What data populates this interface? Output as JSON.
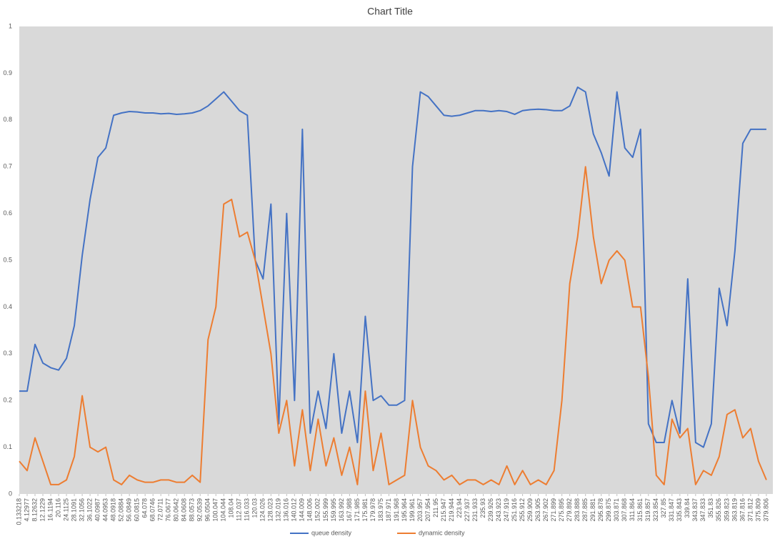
{
  "chart_data": {
    "type": "line",
    "title": "Chart Title",
    "x": [
      0.133218,
      4.12977,
      8.12632,
      12.1229,
      16.1194,
      20.116,
      24.1125,
      28.1091,
      32.1056,
      36.1022,
      40.0987,
      44.0953,
      48.0918,
      52.0884,
      56.0849,
      60.0815,
      64.078,
      68.0746,
      72.0711,
      76.0677,
      80.0642,
      84.0608,
      88.0573,
      92.0539,
      96.0504,
      100.047,
      104.044,
      108.04,
      112.037,
      116.033,
      120.03,
      124.026,
      128.023,
      132.019,
      136.016,
      140.012,
      144.009,
      148.006,
      152.002,
      155.999,
      159.995,
      163.992,
      167.988,
      171.985,
      175.981,
      179.978,
      183.975,
      187.971,
      191.968,
      195.964,
      199.961,
      203.957,
      207.954,
      211.95,
      215.947,
      219.944,
      223.94,
      227.937,
      231.933,
      235.93,
      239.926,
      243.923,
      247.919,
      251.916,
      255.912,
      259.909,
      263.905,
      267.902,
      271.899,
      275.895,
      279.892,
      283.888,
      287.885,
      291.881,
      295.878,
      299.875,
      303.871,
      307.868,
      311.864,
      315.861,
      319.857,
      323.854,
      327.85,
      331.847,
      335.843,
      339.84,
      343.837,
      347.833,
      351.83,
      355.826,
      359.823,
      363.819,
      367.816,
      371.812,
      375.809,
      379.806
    ],
    "series": [
      {
        "name": "queue density",
        "color": "#4472c4",
        "values": [
          0.22,
          0.22,
          0.32,
          0.28,
          0.27,
          0.265,
          0.29,
          0.36,
          0.51,
          0.63,
          0.72,
          0.74,
          0.81,
          0.815,
          0.818,
          0.817,
          0.815,
          0.815,
          0.813,
          0.814,
          0.812,
          0.813,
          0.815,
          0.82,
          0.83,
          0.845,
          0.86,
          0.84,
          0.82,
          0.81,
          0.5,
          0.46,
          0.62,
          0.15,
          0.6,
          0.2,
          0.78,
          0.13,
          0.22,
          0.14,
          0.3,
          0.13,
          0.22,
          0.11,
          0.38,
          0.2,
          0.21,
          0.19,
          0.19,
          0.2,
          0.7,
          0.86,
          0.85,
          0.83,
          0.81,
          0.808,
          0.81,
          0.815,
          0.82,
          0.82,
          0.818,
          0.82,
          0.818,
          0.812,
          0.82,
          0.822,
          0.823,
          0.822,
          0.82,
          0.82,
          0.83,
          0.87,
          0.86,
          0.77,
          0.73,
          0.68,
          0.86,
          0.74,
          0.72,
          0.78,
          0.15,
          0.11,
          0.11,
          0.2,
          0.13,
          0.46,
          0.11,
          0.1,
          0.15,
          0.44,
          0.36,
          0.52,
          0.75,
          0.78,
          0.78,
          0.78
        ]
      },
      {
        "name": "dynamic density",
        "color": "#ed7d31",
        "values": [
          0.07,
          0.05,
          0.12,
          0.07,
          0.02,
          0.02,
          0.03,
          0.08,
          0.21,
          0.1,
          0.09,
          0.1,
          0.03,
          0.02,
          0.04,
          0.03,
          0.025,
          0.025,
          0.03,
          0.03,
          0.025,
          0.025,
          0.04,
          0.025,
          0.33,
          0.4,
          0.62,
          0.63,
          0.55,
          0.56,
          0.5,
          0.4,
          0.3,
          0.13,
          0.2,
          0.06,
          0.18,
          0.05,
          0.16,
          0.06,
          0.12,
          0.04,
          0.1,
          0.02,
          0.22,
          0.05,
          0.13,
          0.02,
          0.03,
          0.04,
          0.2,
          0.1,
          0.06,
          0.05,
          0.03,
          0.04,
          0.02,
          0.03,
          0.03,
          0.02,
          0.03,
          0.02,
          0.06,
          0.02,
          0.05,
          0.02,
          0.03,
          0.02,
          0.05,
          0.2,
          0.45,
          0.55,
          0.7,
          0.55,
          0.45,
          0.5,
          0.52,
          0.5,
          0.4,
          0.4,
          0.25,
          0.04,
          0.02,
          0.16,
          0.12,
          0.14,
          0.02,
          0.05,
          0.04,
          0.08,
          0.17,
          0.18,
          0.12,
          0.14,
          0.07,
          0.03
        ]
      }
    ],
    "xlim": [
      0.133218,
      383.1
    ],
    "xticks": [
      0.133218,
      4.12977,
      8.12632,
      12.1229,
      16.1194,
      20.116,
      24.1125,
      28.1091,
      32.1056,
      36.1022,
      40.0987,
      44.0953,
      48.0918,
      52.0884,
      56.0849,
      60.0815,
      64.078,
      68.0746,
      72.0711,
      76.0677,
      80.0642,
      84.0608,
      88.0573,
      92.0539,
      96.0504,
      100.047,
      104.044,
      108.04,
      112.037,
      116.033,
      120.03,
      124.026,
      128.023,
      132.019,
      136.016,
      140.012,
      144.009,
      148.006,
      152.002,
      155.999,
      159.995,
      163.992,
      167.988,
      171.985,
      175.981,
      179.978,
      183.975,
      187.971,
      191.968,
      195.964,
      199.961,
      203.957,
      207.954,
      211.95,
      215.947,
      219.944,
      223.94,
      227.937,
      231.933,
      235.93,
      239.926,
      243.923,
      247.919,
      251.916,
      255.912,
      259.909,
      263.905,
      267.902,
      271.899,
      275.895,
      279.892,
      283.888,
      287.885,
      291.881,
      295.878,
      299.875,
      303.871,
      307.868,
      311.864,
      315.861,
      319.857,
      323.854,
      327.85,
      331.847,
      335.843,
      339.84,
      343.837,
      347.833,
      351.83,
      355.826,
      359.823,
      363.819,
      367.816,
      371.812,
      375.809,
      379.806
    ],
    "ylim": [
      0,
      1
    ],
    "yticks": [
      0,
      0.1,
      0.2,
      0.3,
      0.4,
      0.5,
      0.6,
      0.7,
      0.8,
      0.9,
      1
    ],
    "legend": "bottom"
  }
}
